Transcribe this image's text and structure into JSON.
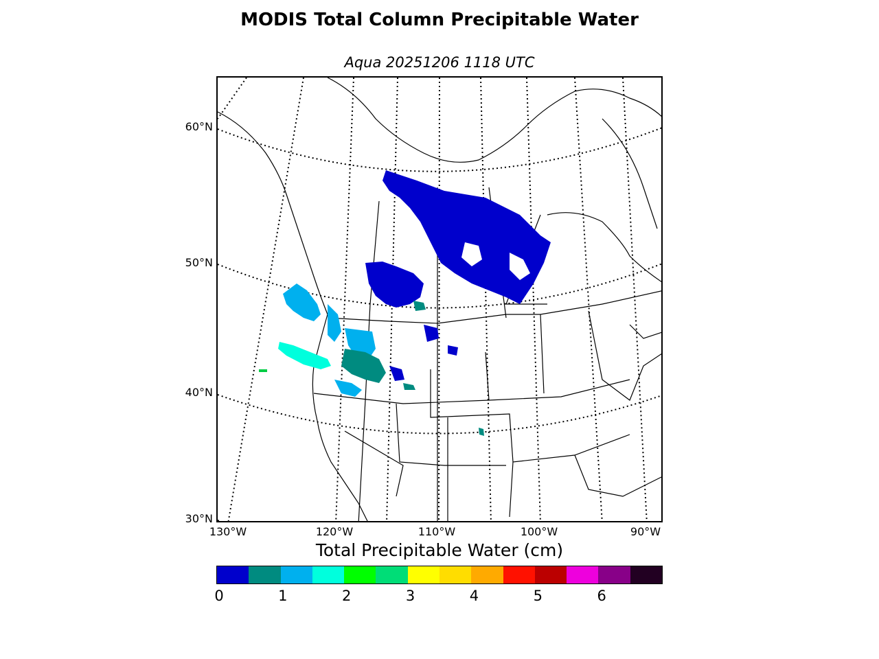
{
  "figure": {
    "title": "MODIS Total Column Precipitable Water",
    "subtitle": "Aqua 20251206 1118 UTC"
  },
  "map": {
    "lat_labels": [
      "60°N",
      "50°N",
      "40°N",
      "30°N"
    ],
    "lon_labels": [
      "130°W",
      "120°W",
      "110°W",
      "100°W",
      "90°W"
    ]
  },
  "colorbar": {
    "title": "Total Precipitable Water (cm)",
    "colors": [
      "#0000cc",
      "#008b80",
      "#00b0ee",
      "#00ffdd",
      "#00ff00",
      "#00dd77",
      "#ffff00",
      "#ffdd00",
      "#ffaa00",
      "#ff1100",
      "#bb0000",
      "#ee00dd",
      "#880088",
      "#220022"
    ],
    "tick_labels": [
      "0",
      "1",
      "2",
      "3",
      "4",
      "5",
      "6"
    ]
  }
}
